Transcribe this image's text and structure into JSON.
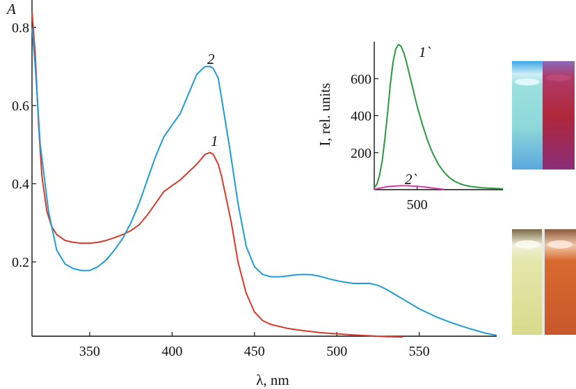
{
  "chart_data": [
    {
      "type": "line",
      "title": "",
      "xlabel": "λ, nm",
      "ylabel": "A",
      "xlim": [
        315,
        597
      ],
      "ylim": [
        0.01,
        0.87
      ],
      "x_ticks": [
        350,
        400,
        450,
        500,
        550
      ],
      "y_ticks": [
        0.2,
        0.4,
        0.6,
        0.8
      ],
      "x_tick_labels": [
        "350",
        "400",
        "450",
        "500",
        "550"
      ],
      "y_tick_labels": [
        "0.2",
        "0.4",
        "0.6",
        "0.8"
      ],
      "legend": "none",
      "grid": false,
      "series": [
        {
          "name": "1",
          "color": "#d63a2a",
          "x": [
            315,
            317,
            319,
            321,
            324,
            327,
            330,
            335,
            340,
            345,
            350,
            355,
            360,
            365,
            370,
            375,
            380,
            385,
            390,
            395,
            400,
            405,
            410,
            415,
            420,
            423,
            425,
            428,
            430,
            433,
            436,
            440,
            445,
            450,
            455,
            460,
            470,
            480,
            490,
            500,
            510,
            520,
            530,
            540
          ],
          "y": [
            0.84,
            0.73,
            0.55,
            0.42,
            0.33,
            0.29,
            0.27,
            0.255,
            0.25,
            0.248,
            0.248,
            0.25,
            0.255,
            0.262,
            0.27,
            0.28,
            0.295,
            0.32,
            0.35,
            0.38,
            0.395,
            0.41,
            0.43,
            0.45,
            0.475,
            0.48,
            0.475,
            0.45,
            0.42,
            0.36,
            0.3,
            0.2,
            0.12,
            0.072,
            0.05,
            0.04,
            0.03,
            0.024,
            0.019,
            0.016,
            0.013,
            0.011,
            0.009,
            0.008
          ]
        },
        {
          "name": "2",
          "color": "#1f9bd6",
          "x": [
            315,
            317,
            320,
            325,
            330,
            335,
            340,
            345,
            350,
            355,
            360,
            365,
            370,
            375,
            380,
            385,
            390,
            395,
            400,
            405,
            410,
            415,
            420,
            423,
            425,
            428,
            430,
            435,
            440,
            445,
            450,
            455,
            460,
            465,
            470,
            475,
            480,
            485,
            490,
            495,
            500,
            505,
            510,
            515,
            520,
            525,
            530,
            540,
            550,
            560,
            570,
            580,
            590,
            597
          ],
          "y": [
            0.8,
            0.7,
            0.5,
            0.33,
            0.23,
            0.195,
            0.183,
            0.178,
            0.178,
            0.188,
            0.205,
            0.23,
            0.26,
            0.3,
            0.35,
            0.41,
            0.47,
            0.52,
            0.55,
            0.58,
            0.63,
            0.68,
            0.7,
            0.7,
            0.695,
            0.67,
            0.62,
            0.49,
            0.35,
            0.24,
            0.188,
            0.168,
            0.162,
            0.162,
            0.164,
            0.167,
            0.168,
            0.167,
            0.163,
            0.157,
            0.152,
            0.148,
            0.145,
            0.145,
            0.145,
            0.14,
            0.13,
            0.105,
            0.08,
            0.06,
            0.044,
            0.03,
            0.018,
            0.012
          ]
        }
      ],
      "curve_labels": [
        "1",
        "2"
      ]
    },
    {
      "type": "line",
      "title": "",
      "xlabel": "",
      "ylabel": "I, rel. units",
      "xlim": [
        420,
        660
      ],
      "ylim": [
        0,
        800
      ],
      "x_ticks": [
        500
      ],
      "y_ticks": [
        200,
        400,
        600
      ],
      "x_tick_labels": [
        "500"
      ],
      "y_tick_labels": [
        "200",
        "400",
        "600"
      ],
      "legend": "none",
      "grid": false,
      "series": [
        {
          "name": "1`",
          "color": "#2a9a3e",
          "x": [
            420,
            425,
            430,
            435,
            440,
            445,
            450,
            455,
            460,
            465,
            470,
            475,
            480,
            485,
            490,
            495,
            500,
            510,
            520,
            530,
            540,
            550,
            560,
            570,
            580,
            590,
            600,
            620,
            640,
            660
          ],
          "y": [
            10,
            30,
            80,
            160,
            280,
            420,
            570,
            690,
            760,
            785,
            775,
            740,
            690,
            630,
            570,
            510,
            450,
            350,
            260,
            190,
            135,
            95,
            65,
            45,
            32,
            23,
            17,
            10,
            7,
            5
          ]
        },
        {
          "name": "2`",
          "color": "#d63aa8",
          "x": [
            420,
            430,
            440,
            450,
            460,
            470,
            480,
            490,
            500,
            510,
            520,
            530,
            540,
            550
          ],
          "y": [
            2,
            8,
            14,
            18,
            20,
            21,
            21,
            20,
            18,
            15,
            12,
            8,
            5,
            2
          ]
        }
      ],
      "curve_labels": [
        "1`",
        "2`"
      ]
    }
  ],
  "photos": [
    {
      "name": "fluorescence-cuvettes-photo",
      "colors": [
        "#8fd6dc",
        "#b2282f"
      ]
    },
    {
      "name": "daylight-cuvettes-photo",
      "colors": [
        "#dfe3a2",
        "#d4642f"
      ]
    }
  ]
}
